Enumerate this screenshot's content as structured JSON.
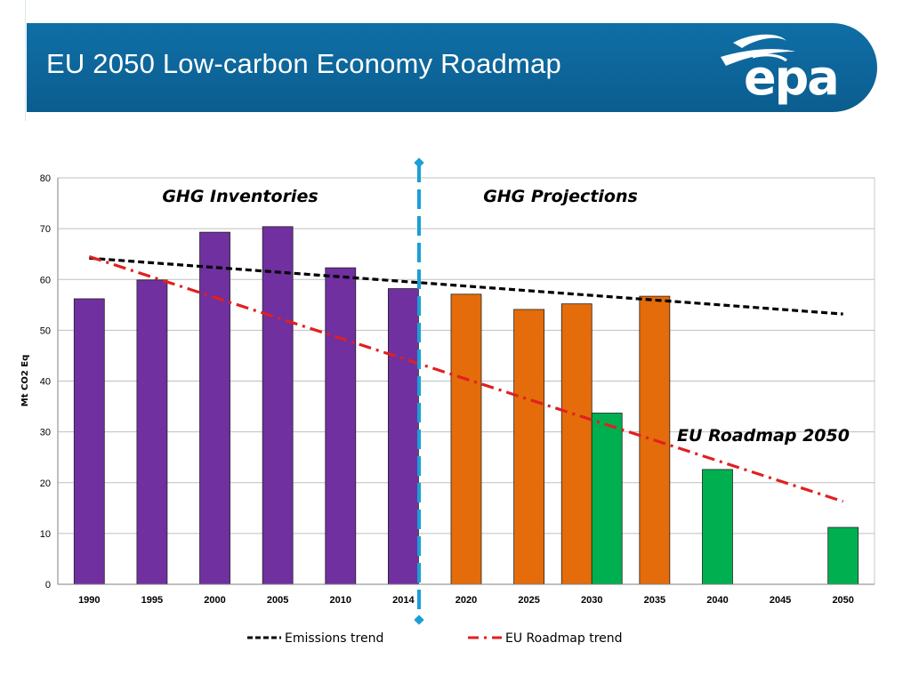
{
  "header": {
    "title": "EU 2050 Low-carbon Economy Roadmap",
    "logo_text": "epa"
  },
  "colors": {
    "header_bg": "#0b5d8f",
    "inventory": "#7030a0",
    "projection": "#e46c0a",
    "roadmap": "#00b050",
    "emissions_trend": "#000000",
    "roadmap_trend": "#e02020",
    "divider": "#1a9fd6"
  },
  "chart_data": {
    "type": "bar",
    "ylabel": "Mt CO2 Eq",
    "ylim": [
      0,
      80
    ],
    "yticks": [
      0,
      10,
      20,
      30,
      40,
      50,
      60,
      70,
      80
    ],
    "categories": [
      "1990",
      "1995",
      "2000",
      "2005",
      "2010",
      "2014",
      "2020",
      "2025",
      "2030",
      "2035",
      "2040",
      "2045",
      "2050"
    ],
    "series": [
      {
        "name": "GHG Inventories",
        "values": [
          56.2,
          59.9,
          69.3,
          70.4,
          62.3,
          58.2,
          null,
          null,
          null,
          null,
          null,
          null,
          null
        ]
      },
      {
        "name": "GHG Projections",
        "values": [
          null,
          null,
          null,
          null,
          null,
          null,
          57.1,
          54.1,
          55.2,
          56.7,
          null,
          null,
          null
        ]
      },
      {
        "name": "EU Roadmap 2050",
        "values": [
          null,
          null,
          null,
          null,
          null,
          null,
          null,
          null,
          33.7,
          null,
          22.6,
          null,
          11.2
        ]
      }
    ],
    "trend_lines": [
      {
        "name": "Emissions trend",
        "from": {
          "category": "1990",
          "value": 64.2
        },
        "to": {
          "category": "2050",
          "value": 53.2
        }
      },
      {
        "name": "EU Roadmap trend",
        "from": {
          "category": "1990",
          "value": 64.5
        },
        "to": {
          "category": "2050",
          "value": 16.3
        }
      }
    ],
    "annotations": [
      "GHG Inventories",
      "GHG Projections",
      "EU Roadmap 2050"
    ],
    "legend": [
      "Emissions trend",
      "EU Roadmap trend"
    ]
  }
}
